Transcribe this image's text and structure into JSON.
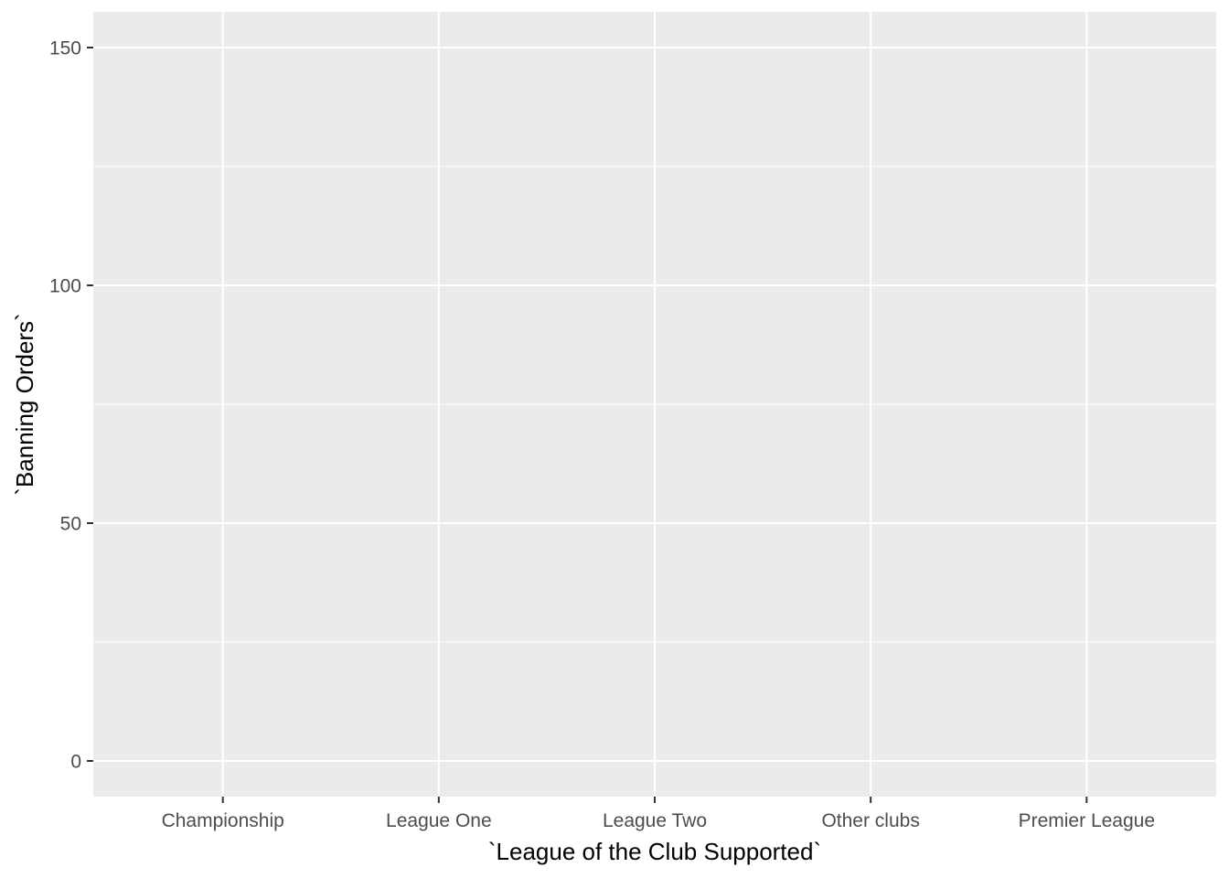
{
  "chart_data": {
    "type": "bar",
    "categories": [
      "Championship",
      "League One",
      "League Two",
      "Other clubs",
      "Premier League"
    ],
    "series": [],
    "xlabel": "`League of the Club Supported`",
    "ylabel": "`Banning Orders`",
    "ylim": [
      -7.5,
      157.5
    ],
    "yticks": [
      0,
      50,
      100,
      150
    ],
    "grid": true,
    "colors": {
      "panel_background": "#ebebeb",
      "grid_line": "#ffffff",
      "tick_mark": "#333333",
      "tick_label": "#4d4d4d",
      "axis_title": "#000000"
    }
  }
}
